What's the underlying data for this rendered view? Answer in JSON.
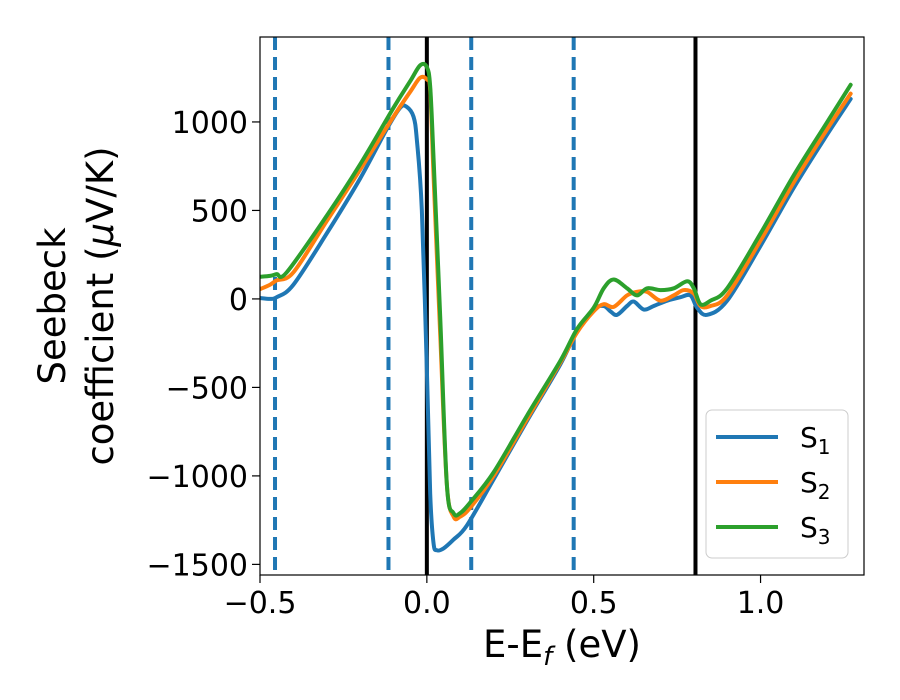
{
  "chart_data": {
    "type": "line",
    "title": "",
    "xlabel": "E-E",
    "xlabel_sub": "f",
    "xlabel_unit": " (eV)",
    "ylabel_line1": "Seebeck",
    "ylabel_line2_pre": "coefficient  (",
    "ylabel_line2_mu": "μ",
    "ylabel_line2_post": "V/K)",
    "xlim": [
      -0.5,
      1.31
    ],
    "ylim": [
      -1560,
      1480
    ],
    "x_ticks": [
      -0.5,
      0.0,
      0.5,
      1.0
    ],
    "x_tick_labels": [
      "−0.5",
      "0.0",
      "0.5",
      "1.0"
    ],
    "y_ticks": [
      1000,
      500,
      0,
      -500,
      -1000,
      -1500
    ],
    "y_tick_labels": [
      "1000",
      "500",
      "0",
      "−500",
      "−1000",
      "−1500"
    ],
    "grid": false,
    "legend_position": "lower-right",
    "vertical_lines": [
      {
        "x": -0.455,
        "style": "dashed",
        "color": "#1f77b4"
      },
      {
        "x": -0.115,
        "style": "dashed",
        "color": "#1f77b4"
      },
      {
        "x": 0.0,
        "style": "solid",
        "color": "#000000"
      },
      {
        "x": 0.133,
        "style": "dashed",
        "color": "#1f77b4"
      },
      {
        "x": 0.44,
        "style": "dashed",
        "color": "#1f77b4"
      },
      {
        "x": 0.805,
        "style": "solid",
        "color": "#000000"
      }
    ],
    "series": [
      {
        "name": "S",
        "sub": "1",
        "color": "#1f77b4",
        "points": [
          [
            -0.5,
            5
          ],
          [
            -0.47,
            0
          ],
          [
            -0.45,
            10
          ],
          [
            -0.4,
            80
          ],
          [
            -0.3,
            370
          ],
          [
            -0.2,
            680
          ],
          [
            -0.12,
            960
          ],
          [
            -0.08,
            1080
          ],
          [
            -0.06,
            1085
          ],
          [
            -0.04,
            1030
          ],
          [
            -0.03,
            900
          ],
          [
            -0.015,
            500
          ],
          [
            0.0,
            -400
          ],
          [
            0.01,
            -1100
          ],
          [
            0.02,
            -1380
          ],
          [
            0.03,
            -1420
          ],
          [
            0.05,
            -1410
          ],
          [
            0.08,
            -1360
          ],
          [
            0.12,
            -1280
          ],
          [
            0.2,
            -1020
          ],
          [
            0.3,
            -690
          ],
          [
            0.4,
            -370
          ],
          [
            0.45,
            -180
          ],
          [
            0.5,
            -60
          ],
          [
            0.53,
            -40
          ],
          [
            0.55,
            -70
          ],
          [
            0.57,
            -90
          ],
          [
            0.6,
            -40
          ],
          [
            0.62,
            -15
          ],
          [
            0.65,
            -60
          ],
          [
            0.68,
            -40
          ],
          [
            0.72,
            -10
          ],
          [
            0.76,
            10
          ],
          [
            0.79,
            20
          ],
          [
            0.81,
            -50
          ],
          [
            0.84,
            -90
          ],
          [
            0.9,
            -10
          ],
          [
            1.0,
            300
          ],
          [
            1.1,
            630
          ],
          [
            1.2,
            930
          ],
          [
            1.27,
            1130
          ]
        ]
      },
      {
        "name": "S",
        "sub": "2",
        "color": "#ff7f0e",
        "points": [
          [
            -0.5,
            55
          ],
          [
            -0.47,
            80
          ],
          [
            -0.45,
            105
          ],
          [
            -0.4,
            150
          ],
          [
            -0.3,
            440
          ],
          [
            -0.2,
            730
          ],
          [
            -0.1,
            1030
          ],
          [
            -0.05,
            1170
          ],
          [
            -0.02,
            1250
          ],
          [
            0.0,
            1240
          ],
          [
            0.01,
            1180
          ],
          [
            0.02,
            700
          ],
          [
            0.04,
            -200
          ],
          [
            0.06,
            -1050
          ],
          [
            0.08,
            -1230
          ],
          [
            0.1,
            -1230
          ],
          [
            0.13,
            -1180
          ],
          [
            0.2,
            -1000
          ],
          [
            0.3,
            -680
          ],
          [
            0.4,
            -360
          ],
          [
            0.45,
            -190
          ],
          [
            0.5,
            -70
          ],
          [
            0.53,
            -30
          ],
          [
            0.56,
            -45
          ],
          [
            0.6,
            20
          ],
          [
            0.63,
            40
          ],
          [
            0.66,
            40
          ],
          [
            0.7,
            -10
          ],
          [
            0.74,
            20
          ],
          [
            0.77,
            50
          ],
          [
            0.8,
            30
          ],
          [
            0.82,
            -40
          ],
          [
            0.85,
            -40
          ],
          [
            0.9,
            20
          ],
          [
            1.0,
            330
          ],
          [
            1.1,
            660
          ],
          [
            1.2,
            960
          ],
          [
            1.27,
            1160
          ]
        ]
      },
      {
        "name": "S",
        "sub": "3",
        "color": "#2ca02c",
        "points": [
          [
            -0.5,
            125
          ],
          [
            -0.47,
            130
          ],
          [
            -0.45,
            140
          ],
          [
            -0.42,
            150
          ],
          [
            -0.3,
            470
          ],
          [
            -0.2,
            760
          ],
          [
            -0.1,
            1080
          ],
          [
            -0.05,
            1230
          ],
          [
            -0.02,
            1320
          ],
          [
            0.0,
            1310
          ],
          [
            0.01,
            1200
          ],
          [
            0.02,
            800
          ],
          [
            0.04,
            -100
          ],
          [
            0.06,
            -1050
          ],
          [
            0.08,
            -1210
          ],
          [
            0.1,
            -1210
          ],
          [
            0.13,
            -1150
          ],
          [
            0.2,
            -980
          ],
          [
            0.3,
            -660
          ],
          [
            0.4,
            -350
          ],
          [
            0.45,
            -170
          ],
          [
            0.5,
            -50
          ],
          [
            0.53,
            60
          ],
          [
            0.56,
            110
          ],
          [
            0.6,
            60
          ],
          [
            0.63,
            20
          ],
          [
            0.66,
            60
          ],
          [
            0.7,
            50
          ],
          [
            0.74,
            60
          ],
          [
            0.78,
            100
          ],
          [
            0.8,
            60
          ],
          [
            0.82,
            -30
          ],
          [
            0.85,
            -10
          ],
          [
            0.9,
            60
          ],
          [
            1.0,
            370
          ],
          [
            1.1,
            700
          ],
          [
            1.2,
            1000
          ],
          [
            1.27,
            1210
          ]
        ]
      }
    ]
  }
}
